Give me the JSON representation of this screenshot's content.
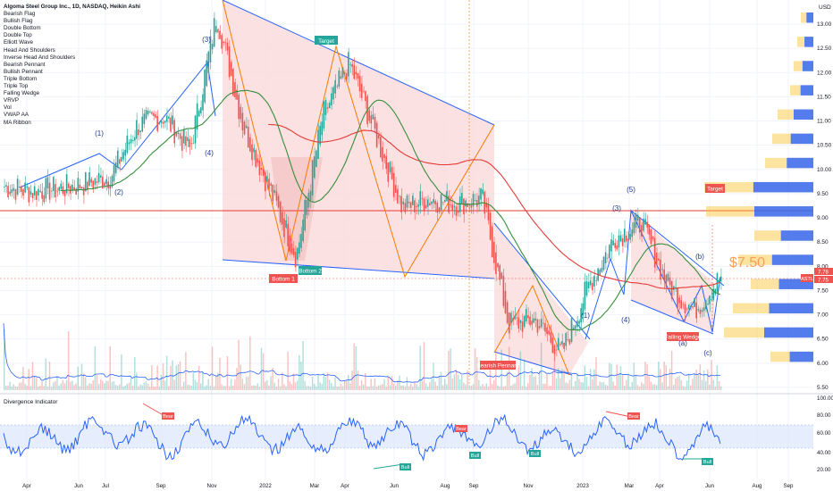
{
  "header": {
    "title": "Algoma Steel Group Inc., 1D, NASDAQ, Heikin Ashi"
  },
  "indicators": [
    "Bearish Flag",
    "Bullish Flag",
    "Double Bottom",
    "Double Top",
    "Elliott Wave",
    "Head And Shoulders",
    "Inverse Head And Shoulders",
    "Bearish Pennant",
    "Bullish Pennant",
    "Triple Bottom",
    "Triple Top",
    "Falling Wedge",
    "VRVP",
    "Vol",
    "VWAP AA",
    "MA Ribbon"
  ],
  "price_axis": {
    "currency": "USD",
    "ticks": [
      "13.00",
      "12.50",
      "12.00",
      "11.50",
      "11.00",
      "10.50",
      "10.00",
      "9.50",
      "9.00",
      "8.50",
      "8.00",
      "7.50",
      "7.00",
      "6.50",
      "6.00",
      "5.50"
    ]
  },
  "time_axis": {
    "labels": [
      "Apr",
      "Jun",
      "Jul",
      "Sep",
      "Nov",
      "2022",
      "Mar",
      "Apr",
      "Jun",
      "Aug",
      "Sep",
      "Nov",
      "2023",
      "Mar",
      "Apr",
      "Jun",
      "Aug",
      "Sep"
    ]
  },
  "badges": {
    "price_ticker": "ASTL",
    "price_a": "7.78",
    "price_b": "7.75"
  },
  "annotations": {
    "target_1": "Target",
    "target_2": "Target",
    "bottom_1": "Bottom 1",
    "bottom_2": "Bottom 2",
    "bearish_pennant": "Bearish Pennant",
    "falling_wedge": "Falling Wedge",
    "price_callout": "$7.50",
    "waves": [
      "(1)",
      "(2)",
      "(3)",
      "(4)",
      "(1)",
      "(3)",
      "(4)",
      "(5)",
      "(a)",
      "(b)",
      "(c)"
    ]
  },
  "divergence": {
    "title": "Divergence Indicator",
    "ticks": [
      "100.00",
      "80.00",
      "60.00",
      "40.00",
      "20.00"
    ],
    "bear_label": "Bear",
    "bull_label": "Bull"
  },
  "colors": {
    "up": "#26a69a",
    "down": "#ef5350",
    "triangle_fill": "#f8d3d3",
    "channel_line": "#2962ff",
    "wave_line": "#f57c00",
    "ma_green": "#388e3c",
    "ma_red": "#e53935",
    "vrvp_blue": "#2962ff",
    "vrvp_yellow": "#fbc02d",
    "oscillator": "#2962ff"
  },
  "chart_data": {
    "type": "candlestick",
    "title": "Algoma Steel Group Inc., 1D, NASDAQ, Heikin Ashi",
    "ylim": [
      5.5,
      13.3
    ],
    "series": [
      {
        "name": "price",
        "x": [
          "2021-03",
          "2021-04",
          "2021-05",
          "2021-06",
          "2021-07",
          "2021-08",
          "2021-09",
          "2021-10",
          "2021-11",
          "2021-12",
          "2022-01",
          "2022-02",
          "2022-03",
          "2022-04",
          "2022-05",
          "2022-06",
          "2022-07",
          "2022-08",
          "2022-09",
          "2022-10",
          "2022-11",
          "2022-12",
          "2023-01",
          "2023-02",
          "2023-03",
          "2023-04",
          "2023-05",
          "2023-06"
        ],
        "values": [
          9.65,
          9.55,
          9.6,
          9.7,
          9.85,
          10.9,
          11.1,
          10.4,
          13.2,
          10.9,
          9.6,
          8.2,
          11.1,
          12.2,
          10.7,
          9.2,
          9.4,
          9.3,
          9.4,
          6.8,
          6.9,
          6.2,
          7.6,
          8.6,
          8.9,
          7.6,
          7.1,
          7.78
        ]
      }
    ]
  }
}
